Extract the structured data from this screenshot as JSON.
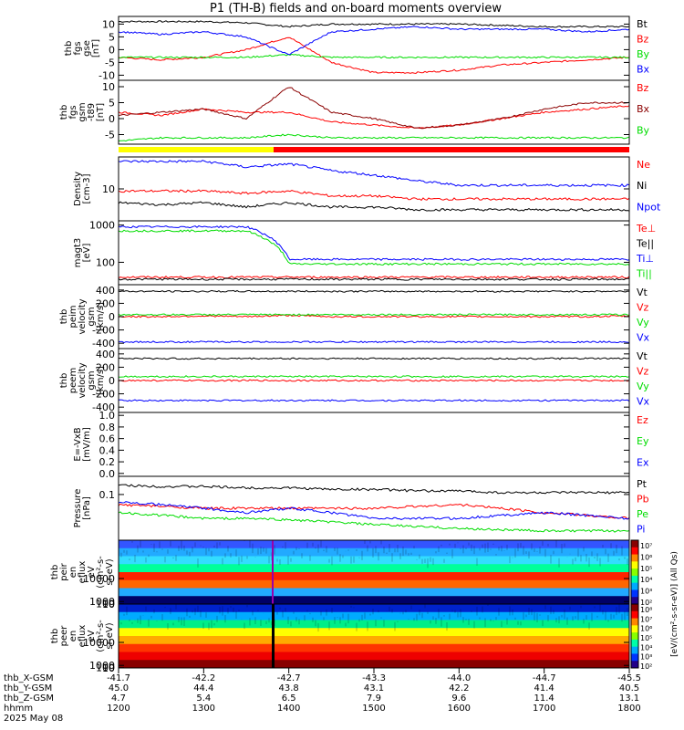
{
  "title": "P1 (TH-B) fields and on-board moments overview",
  "colors": {
    "black": "#000000",
    "red": "#ff0000",
    "green": "#00dd00",
    "blue": "#0000ff",
    "darkred": "#8b0000",
    "yellow": "#ffff00"
  },
  "chart_data": [
    {
      "id": "fgs_gse",
      "type": "line",
      "ylabel": [
        "thb",
        "fgs",
        "gse",
        "[nT]"
      ],
      "yticks": [
        10,
        5,
        0,
        -5,
        -10
      ],
      "ylim": [
        -12,
        13
      ],
      "series": [
        {
          "name": "Bt",
          "color": "black",
          "values": [
            11,
            11,
            11,
            10.5,
            9,
            10,
            10,
            10,
            10,
            9.5,
            9,
            9,
            9
          ]
        },
        {
          "name": "Bz",
          "color": "red",
          "values": [
            -3,
            -4,
            -3,
            0,
            5,
            -5,
            -9,
            -9,
            -8,
            -6,
            -5,
            -4,
            -3
          ]
        },
        {
          "name": "By",
          "color": "green",
          "values": [
            -3,
            -3,
            -3,
            -3,
            -2,
            -3,
            -3,
            -3,
            -3,
            -3,
            -3,
            -3,
            -3
          ]
        },
        {
          "name": "Bx",
          "color": "blue",
          "values": [
            7,
            6,
            7,
            5,
            -2,
            7,
            8,
            9,
            8,
            8,
            8,
            7,
            8
          ]
        }
      ]
    },
    {
      "id": "fgs_gsm",
      "type": "line",
      "ylabel": [
        "thb",
        "fgs",
        "gsm",
        "-t89",
        "[nT]"
      ],
      "yticks": [
        10,
        5,
        0,
        -5
      ],
      "ylim": [
        -8,
        12
      ],
      "series": [
        {
          "name": "Bz",
          "color": "red",
          "values": [
            2,
            1,
            3,
            2,
            2,
            -1,
            -2,
            -3,
            -2,
            0,
            2,
            3,
            4
          ]
        },
        {
          "name": "Bx",
          "color": "darkred",
          "values": [
            1,
            2,
            3,
            0,
            10,
            2,
            0,
            -3,
            -2,
            0,
            3,
            5,
            5
          ]
        },
        {
          "name": "By",
          "color": "green",
          "values": [
            -7,
            -6,
            -6,
            -6,
            -5,
            -6,
            -6,
            -6,
            -6,
            -6,
            -6,
            -6,
            -6
          ]
        }
      ]
    },
    {
      "id": "density",
      "type": "line",
      "scale": "log",
      "ylabel": [
        "Density",
        "[cm-3]"
      ],
      "yticks": [
        10
      ],
      "ylim": [
        2,
        50
      ],
      "series": [
        {
          "name": "Ne",
          "color": "red",
          "values": [
            9,
            9,
            9,
            8,
            9,
            7,
            7,
            6,
            6,
            6,
            6,
            6,
            6
          ]
        },
        {
          "name": "Ni",
          "color": "black",
          "values": [
            5,
            4.5,
            5,
            4,
            5,
            4,
            4,
            3.5,
            3.5,
            3.5,
            3.5,
            3.5,
            3.5
          ]
        },
        {
          "name": "Npot",
          "color": "blue",
          "values": [
            40,
            40,
            40,
            30,
            35,
            25,
            20,
            15,
            12,
            12,
            12,
            12,
            12
          ]
        }
      ]
    },
    {
      "id": "temperature",
      "type": "line",
      "scale": "log",
      "ylabel": [
        "magt3",
        "[eV]"
      ],
      "yticks": [
        1000,
        100
      ],
      "ylim": [
        25,
        1300
      ],
      "series": [
        {
          "name": "Te⊥",
          "color": "red",
          "values": [
            40,
            40,
            40,
            40,
            40,
            40,
            40,
            40,
            40,
            40,
            40,
            40,
            40
          ]
        },
        {
          "name": "Te||",
          "color": "black",
          "values": [
            35,
            35,
            35,
            35,
            35,
            35,
            35,
            35,
            35,
            35,
            35,
            35,
            35
          ]
        },
        {
          "name": "Ti⊥",
          "color": "blue",
          "values": [
            900,
            900,
            900,
            900,
            120,
            120,
            120,
            120,
            120,
            120,
            120,
            120,
            120
          ]
        },
        {
          "name": "Ti||",
          "color": "green",
          "values": [
            700,
            700,
            700,
            700,
            90,
            90,
            90,
            90,
            90,
            90,
            90,
            90,
            90
          ]
        }
      ]
    },
    {
      "id": "peim_velocity",
      "type": "line",
      "ylabel": [
        "thb",
        "peim",
        "velocity",
        "gsm",
        "[km/s]"
      ],
      "yticks": [
        400,
        200,
        0,
        -200,
        -400
      ],
      "ylim": [
        -480,
        480
      ],
      "series": [
        {
          "name": "Vt",
          "color": "black",
          "values": [
            380,
            380,
            380,
            380,
            380,
            380,
            380,
            380,
            380,
            380,
            380,
            380,
            380
          ]
        },
        {
          "name": "Vz",
          "color": "red",
          "values": [
            0,
            0,
            10,
            0,
            20,
            0,
            0,
            0,
            0,
            0,
            0,
            0,
            10
          ]
        },
        {
          "name": "Vy",
          "color": "green",
          "values": [
            30,
            30,
            30,
            30,
            30,
            30,
            30,
            30,
            30,
            30,
            30,
            30,
            30
          ]
        },
        {
          "name": "Vx",
          "color": "blue",
          "values": [
            -380,
            -380,
            -380,
            -380,
            -380,
            -380,
            -380,
            -380,
            -380,
            -380,
            -380,
            -380,
            -380
          ]
        }
      ]
    },
    {
      "id": "peem_velocity",
      "type": "line",
      "ylabel": [
        "thb",
        "peem",
        "velocity",
        "gsm",
        "[km/s]"
      ],
      "yticks": [
        400,
        200,
        0,
        -200,
        -400
      ],
      "ylim": [
        -480,
        480
      ],
      "series": [
        {
          "name": "Vt",
          "color": "black",
          "values": [
            330,
            330,
            330,
            330,
            330,
            330,
            330,
            330,
            330,
            330,
            330,
            330,
            330
          ]
        },
        {
          "name": "Vz",
          "color": "red",
          "values": [
            0,
            0,
            0,
            0,
            0,
            0,
            0,
            0,
            0,
            0,
            0,
            0,
            0
          ]
        },
        {
          "name": "Vy",
          "color": "green",
          "values": [
            60,
            60,
            60,
            60,
            60,
            60,
            60,
            60,
            60,
            60,
            60,
            60,
            60
          ]
        },
        {
          "name": "Vx",
          "color": "blue",
          "values": [
            -300,
            -300,
            -300,
            -300,
            -300,
            -300,
            -300,
            -300,
            -300,
            -300,
            -300,
            -300,
            -300
          ]
        }
      ]
    },
    {
      "id": "efield",
      "type": "line",
      "ylabel": [
        "E=-VxB",
        "[mV/m]"
      ],
      "yticks": [
        1.0,
        0.8,
        0.6,
        0.4,
        0.2,
        0.0
      ],
      "yticklabels": [
        "1.0",
        "0.8",
        "0.6",
        "0.4",
        "0.2",
        "0.0"
      ],
      "ylim": [
        -0.05,
        1.05
      ],
      "series": [
        {
          "name": "Ez",
          "color": "red",
          "values": []
        },
        {
          "name": "Ey",
          "color": "green",
          "values": []
        },
        {
          "name": "Ex",
          "color": "blue",
          "values": []
        }
      ]
    },
    {
      "id": "pressure",
      "type": "line",
      "scale": "log",
      "ylabel": [
        "Pressure",
        "[nPa]"
      ],
      "yticks": [
        0.1
      ],
      "ylim": [
        0.01,
        0.25
      ],
      "series": [
        {
          "name": "Pt",
          "color": "black",
          "values": [
            0.16,
            0.15,
            0.15,
            0.14,
            0.14,
            0.13,
            0.13,
            0.12,
            0.12,
            0.11,
            0.11,
            0.11,
            0.11
          ]
        },
        {
          "name": "Pb",
          "color": "red",
          "values": [
            0.06,
            0.055,
            0.05,
            0.05,
            0.05,
            0.05,
            0.05,
            0.055,
            0.06,
            0.05,
            0.04,
            0.035,
            0.03
          ]
        },
        {
          "name": "Pe",
          "color": "green",
          "values": [
            0.04,
            0.035,
            0.03,
            0.03,
            0.028,
            0.025,
            0.022,
            0.02,
            0.018,
            0.017,
            0.016,
            0.016,
            0.016
          ]
        },
        {
          "name": "Pi",
          "color": "blue",
          "values": [
            0.07,
            0.06,
            0.05,
            0.04,
            0.05,
            0.04,
            0.03,
            0.03,
            0.03,
            0.035,
            0.04,
            0.035,
            0.03
          ]
        }
      ]
    },
    {
      "id": "peir_spectrogram",
      "type": "heatmap",
      "ylabel": [
        "thb",
        "peir",
        "en",
        "eflux",
        "eV",
        "(cm²-s-",
        "sr-eV)"
      ],
      "yticks": [
        10000,
        1000,
        100,
        10
      ],
      "yticklabels": [
        "10000",
        "1000",
        "100",
        "10"
      ],
      "ylim": [
        5,
        25000
      ]
    },
    {
      "id": "peer_spectrogram",
      "type": "heatmap",
      "ylabel": [
        "thb",
        "peer",
        "en",
        "eflux",
        "eV",
        "(cm²-s-",
        "sr-eV)"
      ],
      "yticks": [
        10000,
        1000,
        100,
        10
      ],
      "yticklabels": [
        "10000",
        "1000",
        "100",
        "10"
      ],
      "ylim": [
        5,
        25000
      ]
    }
  ],
  "colorbar": {
    "label": "[eV/(cm²-s-sr-eV)] (All Qs)",
    "upper_ticks": [
      "10⁷",
      "10⁶",
      "10⁵",
      "10⁴",
      "10³",
      "10²"
    ],
    "lower_ticks": [
      "10⁸",
      "10⁷",
      "10⁶",
      "10⁵",
      "10⁴",
      "10³",
      "10²"
    ]
  },
  "xaxis": {
    "ticks": [
      "1200",
      "1300",
      "1400",
      "1500",
      "1600",
      "1700",
      "1800"
    ],
    "rows": [
      {
        "label": "thb_X-GSM",
        "values": [
          "-41.7",
          "-42.2",
          "-42.7",
          "-43.3",
          "-44.0",
          "-44.7",
          "-45.5"
        ]
      },
      {
        "label": "thb_Y-GSM",
        "values": [
          "45.0",
          "44.4",
          "43.8",
          "43.1",
          "42.2",
          "41.4",
          "40.5"
        ]
      },
      {
        "label": "thb_Z-GSM",
        "values": [
          "4.7",
          "5.4",
          "6.5",
          "7.9",
          "9.6",
          "11.4",
          "13.1"
        ]
      },
      {
        "label": "hhmm",
        "values": [
          "1200",
          "1300",
          "1400",
          "1500",
          "1600",
          "1700",
          "1800"
        ]
      }
    ],
    "date": "2025 May 08"
  }
}
